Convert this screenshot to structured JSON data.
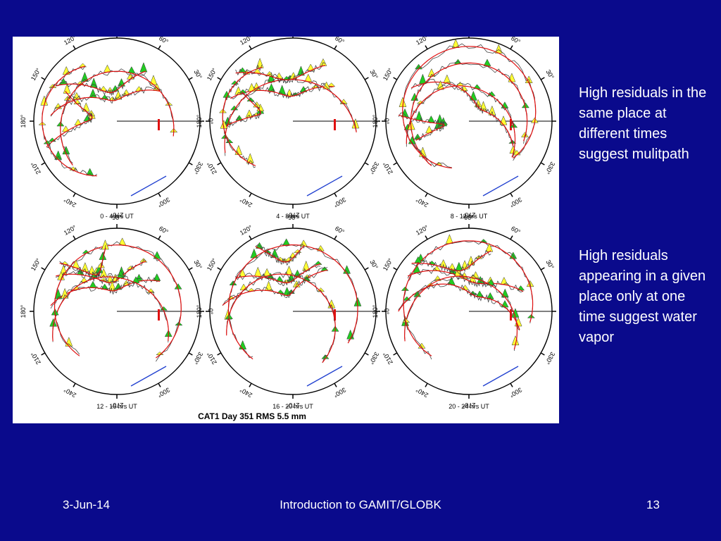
{
  "slide": {
    "background": "#0a0a8c",
    "text_color": "#ffffff"
  },
  "figure": {
    "caption": "CAT1 Day 351 RMS 5.5 mm",
    "azimuth_labels": [
      "90°",
      "60°",
      "30°",
      "0°",
      "330°",
      "300°",
      "270°",
      "240°",
      "210°",
      "180°",
      "150°",
      "120°"
    ],
    "panels": [
      {
        "title": "0 - 4 hrs UT"
      },
      {
        "title": "4 - 8 hrs UT"
      },
      {
        "title": "8 - 12 hrs UT"
      },
      {
        "title": "12 - 16 hrs UT"
      },
      {
        "title": "16 - 20 hrs UT"
      },
      {
        "title": "20 - 24 hrs UT"
      }
    ],
    "colors": {
      "track": "#e01010",
      "positive": "#22cc22",
      "negative": "#ffff33",
      "horizon": "#2040d0",
      "marker": "#e01010"
    }
  },
  "notes": {
    "first": "High residuals in the same place at different times suggest mulitpath",
    "second": "High residuals appearing in a given place only at one time suggest water vapor"
  },
  "footer": {
    "date": "3-Jun-14",
    "title": "Introduction to GAMIT/GLOBK",
    "page": "13"
  }
}
